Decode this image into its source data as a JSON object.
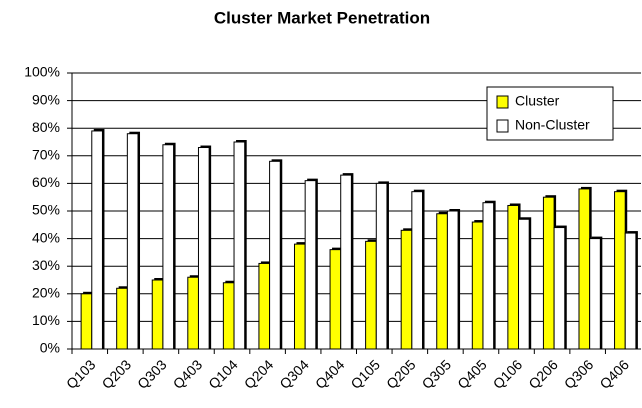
{
  "chart_data": {
    "type": "bar",
    "title": "Cluster Market Penetration",
    "categories": [
      "Q103",
      "Q203",
      "Q303",
      "Q403",
      "Q104",
      "Q204",
      "Q304",
      "Q404",
      "Q105",
      "Q205",
      "Q305",
      "Q405",
      "Q106",
      "Q206",
      "Q306",
      "Q406"
    ],
    "series": [
      {
        "name": "Cluster",
        "color": "#ffff00",
        "values": [
          20,
          22,
          25,
          26,
          24,
          31,
          38,
          36,
          39,
          43,
          49,
          46,
          52,
          55,
          58,
          57
        ]
      },
      {
        "name": "Non-Cluster",
        "color": "#ffffff",
        "values": [
          79,
          78,
          74,
          73,
          75,
          68,
          61,
          63,
          60,
          57,
          50,
          53,
          47,
          44,
          40,
          42
        ]
      }
    ],
    "ylim": [
      0,
      100
    ],
    "yticks": [
      {
        "value": 0,
        "label": "0%"
      },
      {
        "value": 10,
        "label": "10%"
      },
      {
        "value": 20,
        "label": "20%"
      },
      {
        "value": 30,
        "label": "30%"
      },
      {
        "value": 40,
        "label": "40%"
      },
      {
        "value": 50,
        "label": "50%"
      },
      {
        "value": 60,
        "label": "60%"
      },
      {
        "value": 70,
        "label": "70%"
      },
      {
        "value": 80,
        "label": "80%"
      },
      {
        "value": 90,
        "label": "90%"
      },
      {
        "value": 100,
        "label": "100%"
      }
    ],
    "grid": true,
    "legend": "top-right"
  }
}
